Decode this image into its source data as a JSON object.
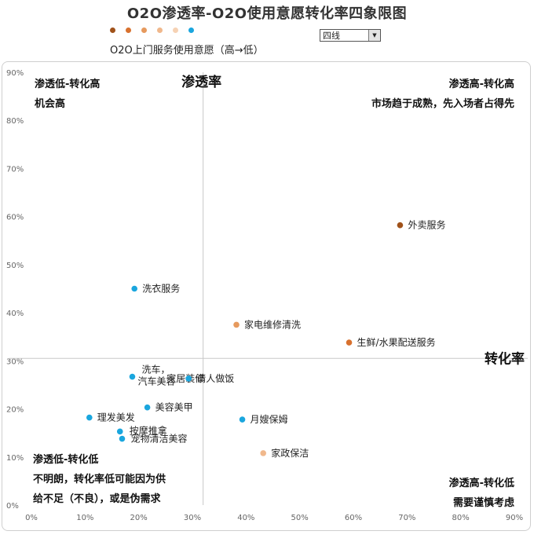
{
  "title": "O2O渗透率-O2O使用意愿转化率四象限图",
  "legend": {
    "caption": "O2O上门服务使用意愿（高→低）",
    "dot_colors": [
      "#a0521a",
      "#d8712e",
      "#e69a5e",
      "#f0b88c",
      "#f6d2b4",
      "#1aa6de"
    ]
  },
  "city_select": {
    "value": "四线"
  },
  "chart_data": {
    "type": "scatter",
    "xlim": [
      0,
      90
    ],
    "ylim": [
      0,
      90
    ],
    "x_ticks": [
      0,
      10,
      20,
      30,
      40,
      50,
      60,
      70,
      80,
      90
    ],
    "y_ticks": [
      0,
      10,
      20,
      30,
      40,
      50,
      60,
      70,
      80,
      90
    ],
    "tick_suffix": "%",
    "divider": {
      "x": 32,
      "y": 30.5
    },
    "xlabel": "转化率",
    "ylabel": "渗透率",
    "points": [
      {
        "name": "外卖服务",
        "x": 68.7,
        "y": 58.2,
        "color": "#a0521a"
      },
      {
        "name": "洗衣服务",
        "x": 19.2,
        "y": 45.0,
        "color": "#1aa6de"
      },
      {
        "name": "家电维修清洗",
        "x": 38.2,
        "y": 37.5,
        "color": "#e69a5e"
      },
      {
        "name": "生鲜/水果配送服务",
        "x": 59.2,
        "y": 33.8,
        "color": "#d8712e"
      },
      {
        "name": "洗车，汽车美容",
        "x": 18.8,
        "y": 26.7,
        "color": "#1aa6de"
      },
      {
        "name": "家居装修",
        "x": 29.3,
        "y": 26.3,
        "color": "#1aa6de"
      },
      {
        "name": "请人做饭",
        "x": 29.3,
        "y": 26.3,
        "color": "#1aa6de"
      },
      {
        "name": "美容美甲",
        "x": 21.6,
        "y": 20.3,
        "color": "#1aa6de"
      },
      {
        "name": "理发美发",
        "x": 10.8,
        "y": 18.2,
        "color": "#1aa6de"
      },
      {
        "name": "月嫂保姆",
        "x": 39.3,
        "y": 17.8,
        "color": "#1aa6de"
      },
      {
        "name": "按摩推拿",
        "x": 16.5,
        "y": 15.3,
        "color": "#1aa6de"
      },
      {
        "name": "宠物清洁美容",
        "x": 16.9,
        "y": 13.8,
        "color": "#1aa6de"
      },
      {
        "name": "家政保洁",
        "x": 43.2,
        "y": 10.8,
        "color": "#f0b88c"
      }
    ],
    "quadrants": {
      "top_left": {
        "title": "渗透低-转化高",
        "desc": [
          "机会高"
        ]
      },
      "top_right": {
        "title": "渗透高-转化高",
        "desc": [
          "市场趋于成熟，先入场者占得先"
        ]
      },
      "bottom_left": {
        "title": "渗透低-转化低",
        "desc": [
          "不明朗，转化率低可能因为供",
          "给不足（不良），或是伪需求"
        ]
      },
      "bottom_right": {
        "title": "渗透高-转化低",
        "desc": [
          "需要谨慎考虑"
        ]
      }
    }
  }
}
